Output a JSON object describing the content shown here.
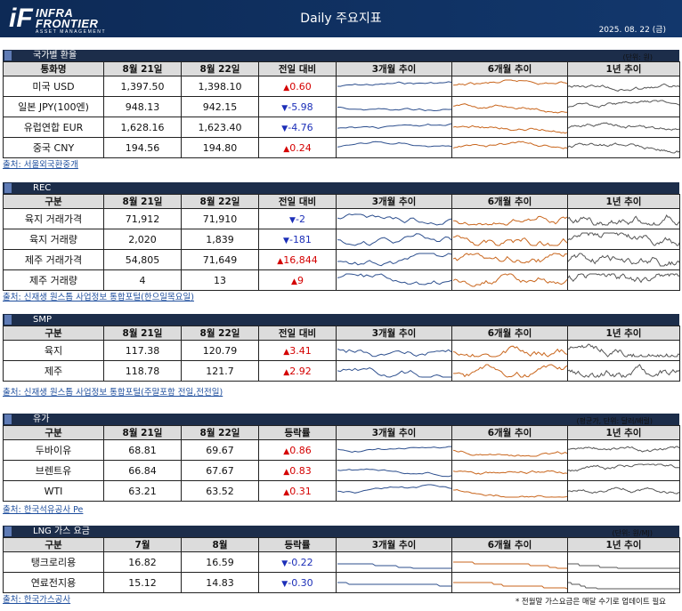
{
  "header": {
    "logo_mark": "iF",
    "logo_line1": "INFRA",
    "logo_line2": "FRONTIER",
    "logo_line3": "ASSET MANAGEMENT",
    "title": "Daily 주요지표",
    "date": "2025. 08. 22 (금)"
  },
  "colors": {
    "banner": "#12376c",
    "section_bar": "#1c2d4a",
    "up": "#d40000",
    "down": "#1c2fb8",
    "spark_3m": "#2d4f8e",
    "spark_6m": "#c9661d",
    "spark_1y": "#555555"
  },
  "sections": [
    {
      "title": "국가별 환율",
      "unit": "(단위: 원)",
      "headers": [
        "통화명",
        "8월 21일",
        "8월 22일",
        "전일 대비",
        "3개월 추이",
        "6개월 추이",
        "1년 추이"
      ],
      "rows": [
        {
          "name": "미국 USD",
          "v1": "1,397.50",
          "v2": "1,398.10",
          "dir": "up",
          "change": "0.60"
        },
        {
          "name": "일본 JPY(100엔)",
          "v1": "948.13",
          "v2": "942.15",
          "dir": "down",
          "change": "-5.98"
        },
        {
          "name": "유럽연합 EUR",
          "v1": "1,628.16",
          "v2": "1,623.40",
          "dir": "down",
          "change": "-4.76"
        },
        {
          "name": "중국 CNY",
          "v1": "194.56",
          "v2": "194.80",
          "dir": "up",
          "change": "0.24"
        }
      ],
      "source": "출처: 서울외국환중개"
    },
    {
      "title": "REC",
      "unit": "",
      "headers": [
        "구분",
        "8월 21일",
        "8월 22일",
        "전일 대비",
        "3개월 추이",
        "6개월 추이",
        "1년 추이"
      ],
      "rows": [
        {
          "name": "육지 거래가격",
          "v1": "71,912",
          "v2": "71,910",
          "dir": "down",
          "change": "-2"
        },
        {
          "name": "육지 거래량",
          "v1": "2,020",
          "v2": "1,839",
          "dir": "down",
          "change": "-181"
        },
        {
          "name": "제주 거래가격",
          "v1": "54,805",
          "v2": "71,649",
          "dir": "up",
          "change": "16,844"
        },
        {
          "name": "제주 거래량",
          "v1": "4",
          "v2": "13",
          "dir": "up",
          "change": "9"
        }
      ],
      "source": "출처: 신재생 원스톱 사업정보 통합포털(한으일목요일)"
    },
    {
      "title": "SMP",
      "unit": "",
      "headers": [
        "구분",
        "8월 21일",
        "8월 22일",
        "전일 대비",
        "3개월 추이",
        "6개월 추이",
        "1년 추이"
      ],
      "rows": [
        {
          "name": "육지",
          "v1": "117.38",
          "v2": "120.79",
          "dir": "up",
          "change": "3.41"
        },
        {
          "name": "제주",
          "v1": "118.78",
          "v2": "121.7",
          "dir": "up",
          "change": "2.92"
        }
      ],
      "source": "출처: 신재생 원스톱 사업정보 통합포털(주말포함 전일,전전일)"
    },
    {
      "title": "유가",
      "unit": "(평균가, 단위: 달러/배럴)",
      "headers": [
        "구분",
        "8월 21일",
        "8월 22일",
        "등락률",
        "3개월 추이",
        "6개월 추이",
        "1년 추이"
      ],
      "rows": [
        {
          "name": "두바이유",
          "v1": "68.81",
          "v2": "69.67",
          "dir": "up",
          "change": "0.86"
        },
        {
          "name": "브렌트유",
          "v1": "66.84",
          "v2": "67.67",
          "dir": "up",
          "change": "0.83"
        },
        {
          "name": "WTI",
          "v1": "63.21",
          "v2": "63.52",
          "dir": "up",
          "change": "0.31"
        }
      ],
      "source": "출처: 한국석유공사 Pe"
    },
    {
      "title": "LNG 가스 요금",
      "unit": "(단위: 원/MJ)",
      "headers": [
        "구분",
        "7월",
        "8월",
        "등락률",
        "3개월 추이",
        "6개월 추이",
        "1년 추이"
      ],
      "rows": [
        {
          "name": "탱크로리용",
          "v1": "16.82",
          "v2": "16.59",
          "dir": "down",
          "change": "-0.22"
        },
        {
          "name": "연료전지용",
          "v1": "15.12",
          "v2": "14.83",
          "dir": "down",
          "change": "-0.30"
        }
      ],
      "source": "출처: 한국가스공사"
    }
  ],
  "footnote": "* 전월말 가스요금은 매달 수기로 업데이트 필요"
}
